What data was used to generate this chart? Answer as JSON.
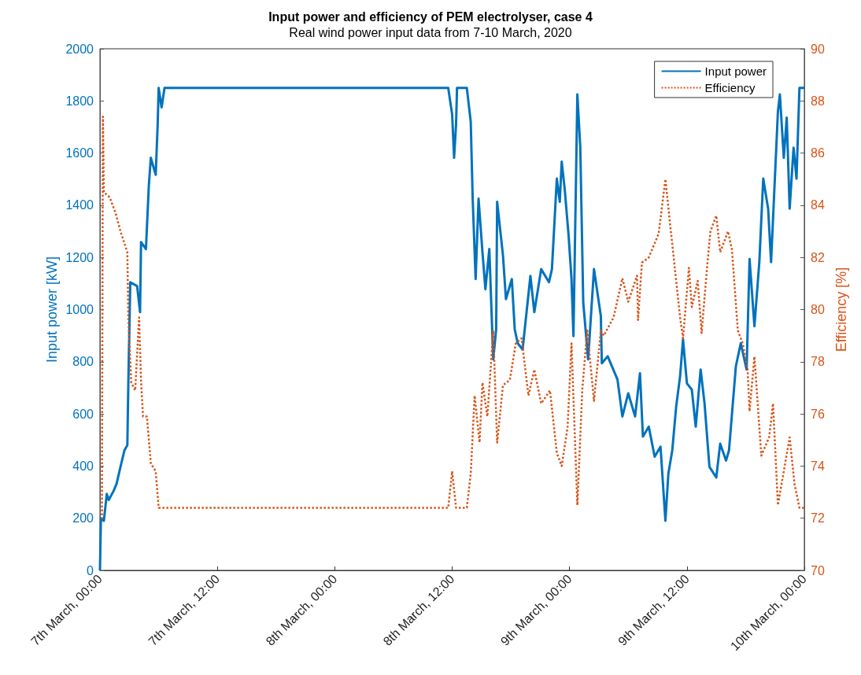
{
  "chart_data": {
    "type": "line",
    "title": "Input power and efficiency of PEM electrolyser, case 4",
    "subtitle": "Real wind power input data from 7-10 March, 2020",
    "ylabel": "Input power [kW]",
    "y2label": "Efficiency [%]",
    "xlim": [
      "2020-03-07T00:00",
      "2020-03-10T00:00"
    ],
    "xticks": [
      {
        "value": "2020-03-07T00:00",
        "label": "7th March, 00:00"
      },
      {
        "value": "2020-03-07T12:00",
        "label": "7th March, 12:00"
      },
      {
        "value": "2020-03-08T00:00",
        "label": "8th March, 00:00"
      },
      {
        "value": "2020-03-08T12:00",
        "label": "8th March, 12:00"
      },
      {
        "value": "2020-03-09T00:00",
        "label": "9th March, 00:00"
      },
      {
        "value": "2020-03-09T12:00",
        "label": "9th March, 12:00"
      },
      {
        "value": "2020-03-10T00:00",
        "label": "10th March, 00:00"
      }
    ],
    "ylim": [
      0,
      2000
    ],
    "yticks": [
      0,
      200,
      400,
      600,
      800,
      1000,
      1200,
      1400,
      1600,
      1800,
      2000
    ],
    "y2lim": [
      70,
      90
    ],
    "y2ticks": [
      70,
      72,
      74,
      76,
      78,
      80,
      82,
      84,
      86,
      88,
      90
    ],
    "grid": false,
    "legend": "top right",
    "marker": "none",
    "series": [
      {
        "name": "Input power",
        "color": "#0072bd",
        "line_style": "solid",
        "x": [
          "2020-03-07T00:00",
          "2020-03-07T00:06",
          "2020-03-07T00:24",
          "2020-03-07T00:42",
          "2020-03-07T00:54",
          "2020-03-07T01:24",
          "2020-03-07T01:42",
          "2020-03-07T02:06",
          "2020-03-07T02:30",
          "2020-03-07T02:48",
          "2020-03-07T02:54",
          "2020-03-07T03:06",
          "2020-03-07T03:48",
          "2020-03-07T04:06",
          "2020-03-07T04:12",
          "2020-03-07T04:42",
          "2020-03-07T05:00",
          "2020-03-07T05:12",
          "2020-03-07T05:42",
          "2020-03-07T05:54",
          "2020-03-07T06:00",
          "2020-03-07T06:18",
          "2020-03-07T06:36",
          "2020-03-08T11:36",
          "2020-03-08T12:00",
          "2020-03-08T12:12",
          "2020-03-08T12:24",
          "2020-03-08T12:30",
          "2020-03-08T13:30",
          "2020-03-08T13:54",
          "2020-03-08T14:06",
          "2020-03-08T14:24",
          "2020-03-08T14:42",
          "2020-03-08T15:06",
          "2020-03-08T15:24",
          "2020-03-08T15:48",
          "2020-03-08T16:12",
          "2020-03-08T16:30",
          "2020-03-08T16:36",
          "2020-03-08T17:12",
          "2020-03-08T17:30",
          "2020-03-08T18:06",
          "2020-03-08T18:24",
          "2020-03-08T18:42",
          "2020-03-08T19:12",
          "2020-03-08T20:00",
          "2020-03-08T20:24",
          "2020-03-08T21:06",
          "2020-03-08T21:54",
          "2020-03-08T22:12",
          "2020-03-08T22:42",
          "2020-03-08T23:00",
          "2020-03-08T23:12",
          "2020-03-08T23:30",
          "2020-03-08T23:54",
          "2020-03-09T00:12",
          "2020-03-09T00:24",
          "2020-03-09T00:48",
          "2020-03-09T01:06",
          "2020-03-09T01:24",
          "2020-03-09T01:54",
          "2020-03-09T02:30",
          "2020-03-09T03:12",
          "2020-03-09T03:18",
          "2020-03-09T03:54",
          "2020-03-09T04:54",
          "2020-03-09T05:24",
          "2020-03-09T06:00",
          "2020-03-09T06:42",
          "2020-03-09T07:12",
          "2020-03-09T07:30",
          "2020-03-09T08:06",
          "2020-03-09T08:42",
          "2020-03-09T09:18",
          "2020-03-09T09:48",
          "2020-03-09T10:06",
          "2020-03-09T10:30",
          "2020-03-09T10:54",
          "2020-03-09T11:18",
          "2020-03-09T11:36",
          "2020-03-09T12:00",
          "2020-03-09T12:30",
          "2020-03-09T12:54",
          "2020-03-09T13:24",
          "2020-03-09T13:48",
          "2020-03-09T14:18",
          "2020-03-09T15:00",
          "2020-03-09T15:24",
          "2020-03-09T16:00",
          "2020-03-09T16:18",
          "2020-03-09T17:00",
          "2020-03-09T17:30",
          "2020-03-09T18:06",
          "2020-03-09T18:24",
          "2020-03-09T18:54",
          "2020-03-09T19:24",
          "2020-03-09T19:48",
          "2020-03-09T20:18",
          "2020-03-09T20:36",
          "2020-03-09T21:18",
          "2020-03-09T21:30",
          "2020-03-09T21:54",
          "2020-03-09T22:12",
          "2020-03-09T22:30",
          "2020-03-09T22:54",
          "2020-03-09T23:12",
          "2020-03-09T23:30",
          "2020-03-10T00:00"
        ],
        "values": [
          0,
          200,
          190,
          293,
          270,
          305,
          332,
          397,
          460,
          480,
          717,
          1105,
          1090,
          990,
          1259,
          1232,
          1478,
          1582,
          1517,
          1710,
          1850,
          1775,
          1850,
          1850,
          1748,
          1582,
          1710,
          1850,
          1850,
          1721,
          1425,
          1117,
          1425,
          1220,
          1078,
          1232,
          809,
          924,
          1413,
          1206,
          1040,
          1117,
          924,
          871,
          847,
          1129,
          990,
          1155,
          1105,
          1155,
          1502,
          1413,
          1567,
          1464,
          1286,
          1117,
          898,
          1825,
          1621,
          1028,
          809,
          1155,
          975,
          794,
          821,
          732,
          590,
          679,
          590,
          756,
          513,
          551,
          436,
          474,
          190,
          370,
          460,
          628,
          744,
          886,
          717,
          693,
          551,
          770,
          640,
          397,
          356,
          486,
          421,
          460,
          782,
          871,
          770,
          1194,
          936,
          1182,
          1502,
          1387,
          1182,
          1760,
          1825,
          1582,
          1736,
          1387,
          1621,
          1502,
          1850,
          1850
        ]
      },
      {
        "name": "Efficiency",
        "color": "#d95319",
        "line_style": "dotted",
        "axis": "y2",
        "x": [
          "2020-03-07T00:06",
          "2020-03-07T00:12",
          "2020-03-07T00:18",
          "2020-03-07T00:24",
          "2020-03-07T01:00",
          "2020-03-07T01:36",
          "2020-03-07T02:06",
          "2020-03-07T02:48",
          "2020-03-07T02:54",
          "2020-03-07T03:12",
          "2020-03-07T03:36",
          "2020-03-07T04:00",
          "2020-03-07T04:12",
          "2020-03-07T04:24",
          "2020-03-07T04:48",
          "2020-03-07T05:12",
          "2020-03-07T05:42",
          "2020-03-07T06:00",
          "2020-03-08T11:36",
          "2020-03-08T12:00",
          "2020-03-08T12:24",
          "2020-03-08T13:30",
          "2020-03-08T13:54",
          "2020-03-08T14:18",
          "2020-03-08T14:48",
          "2020-03-08T15:06",
          "2020-03-08T15:36",
          "2020-03-08T16:12",
          "2020-03-08T16:36",
          "2020-03-08T17:12",
          "2020-03-08T17:54",
          "2020-03-08T18:30",
          "2020-03-08T19:06",
          "2020-03-08T19:48",
          "2020-03-08T20:24",
          "2020-03-08T21:06",
          "2020-03-08T22:00",
          "2020-03-08T22:42",
          "2020-03-08T23:12",
          "2020-03-08T23:48",
          "2020-03-09T00:12",
          "2020-03-09T00:48",
          "2020-03-09T01:18",
          "2020-03-09T01:48",
          "2020-03-09T02:30",
          "2020-03-09T03:12",
          "2020-03-09T03:30",
          "2020-03-09T04:30",
          "2020-03-09T05:24",
          "2020-03-09T06:00",
          "2020-03-09T06:54",
          "2020-03-09T07:00",
          "2020-03-09T07:24",
          "2020-03-09T08:06",
          "2020-03-09T09:06",
          "2020-03-09T09:48",
          "2020-03-09T10:18",
          "2020-03-09T10:54",
          "2020-03-09T11:18",
          "2020-03-09T11:36",
          "2020-03-09T12:12",
          "2020-03-09T12:30",
          "2020-03-09T13:06",
          "2020-03-09T13:30",
          "2020-03-09T14:06",
          "2020-03-09T14:24",
          "2020-03-09T15:00",
          "2020-03-09T15:24",
          "2020-03-09T16:12",
          "2020-03-09T16:36",
          "2020-03-09T17:12",
          "2020-03-09T17:42",
          "2020-03-09T18:12",
          "2020-03-09T18:24",
          "2020-03-09T18:54",
          "2020-03-09T19:36",
          "2020-03-09T20:24",
          "2020-03-09T20:48",
          "2020-03-09T21:18",
          "2020-03-09T21:54",
          "2020-03-09T22:30",
          "2020-03-09T23:00",
          "2020-03-09T23:30",
          "2020-03-10T00:00"
        ],
        "values": [
          72.0,
          72.0,
          87.4,
          84.5,
          84.3,
          83.7,
          83.0,
          82.2,
          79.7,
          77.2,
          76.9,
          79.7,
          77.3,
          75.9,
          75.9,
          74.1,
          73.8,
          72.4,
          72.4,
          73.8,
          72.4,
          72.4,
          73.7,
          76.7,
          74.9,
          77.2,
          75.9,
          79.2,
          74.9,
          77.1,
          77.3,
          78.7,
          78.9,
          76.7,
          77.7,
          76.4,
          76.9,
          74.5,
          74.0,
          75.5,
          78.7,
          72.5,
          76.9,
          79.2,
          76.5,
          79.2,
          79.0,
          79.7,
          81.2,
          80.3,
          81.3,
          79.6,
          81.8,
          82.0,
          82.9,
          85.0,
          83.2,
          81.1,
          79.7,
          78.9,
          81.6,
          80.1,
          81.1,
          79.1,
          81.8,
          83.0,
          83.6,
          82.2,
          83.0,
          82.3,
          79.2,
          78.7,
          77.7,
          76.1,
          78.2,
          74.4,
          75.1,
          76.4,
          72.5,
          73.8,
          75.1,
          73.3,
          72.4,
          72.4
        ]
      }
    ]
  }
}
